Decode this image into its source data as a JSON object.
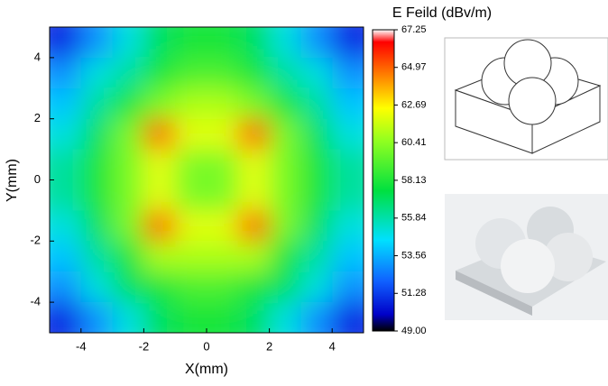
{
  "chart_data": {
    "type": "contour",
    "colorbar_title": "E Feild (dBv/m)",
    "xlabel": "X(mm)",
    "ylabel": "Y(mm)",
    "xlim": [
      -5,
      5
    ],
    "ylim": [
      -5,
      5
    ],
    "xticks": [
      -4,
      -2,
      0,
      2,
      4
    ],
    "yticks": [
      -4,
      -2,
      0,
      2,
      4
    ],
    "x": [
      -4.5,
      -3.5,
      -2.5,
      -1.5,
      -0.5,
      0.5,
      1.5,
      2.5,
      3.5,
      4.5
    ],
    "y": [
      4.5,
      3.5,
      2.5,
      1.5,
      0.5,
      -0.5,
      -1.5,
      -2.5,
      -3.5,
      -4.5
    ],
    "z": [
      [
        51,
        53,
        55,
        57,
        58,
        58,
        57,
        55,
        53,
        51
      ],
      [
        53,
        55,
        56,
        58,
        59,
        59,
        58,
        56,
        55,
        53
      ],
      [
        54,
        56,
        58,
        60,
        61,
        61,
        60,
        58,
        56,
        54
      ],
      [
        55,
        57,
        60,
        65,
        62,
        62,
        65,
        60,
        57,
        55
      ],
      [
        56,
        58,
        60,
        62,
        60,
        60,
        62,
        60,
        58,
        56
      ],
      [
        56,
        58,
        60,
        62,
        60,
        60,
        62,
        60,
        58,
        56
      ],
      [
        55,
        57,
        60,
        65,
        62,
        62,
        65,
        60,
        57,
        55
      ],
      [
        54,
        56,
        58,
        61,
        61,
        61,
        61,
        58,
        56,
        54
      ],
      [
        53,
        55,
        57,
        58,
        59,
        59,
        58,
        57,
        55,
        53
      ],
      [
        51,
        53,
        55,
        57,
        58,
        58,
        57,
        55,
        53,
        51
      ]
    ],
    "zlim": [
      49,
      67.25
    ],
    "zticks": [
      {
        "value": 49,
        "label": "49.00"
      },
      51.28,
      53.56,
      55.84,
      58.13,
      60.41,
      62.69,
      64.97,
      67.25
    ],
    "colormap": [
      {
        "value": 49,
        "color": "#000000"
      },
      {
        "value": 50,
        "color": "#0000c8"
      },
      {
        "value": 52,
        "color": "#1060ff"
      },
      {
        "value": 54.5,
        "color": "#00e0ff"
      },
      {
        "value": 57.5,
        "color": "#00e040"
      },
      {
        "value": 60.5,
        "color": "#90ff20"
      },
      {
        "value": 62.5,
        "color": "#ffff00"
      },
      {
        "value": 64.5,
        "color": "#ff8000"
      },
      {
        "value": 66.5,
        "color": "#ff0000"
      },
      {
        "value": 67.25,
        "color": "#ffffff"
      }
    ]
  }
}
